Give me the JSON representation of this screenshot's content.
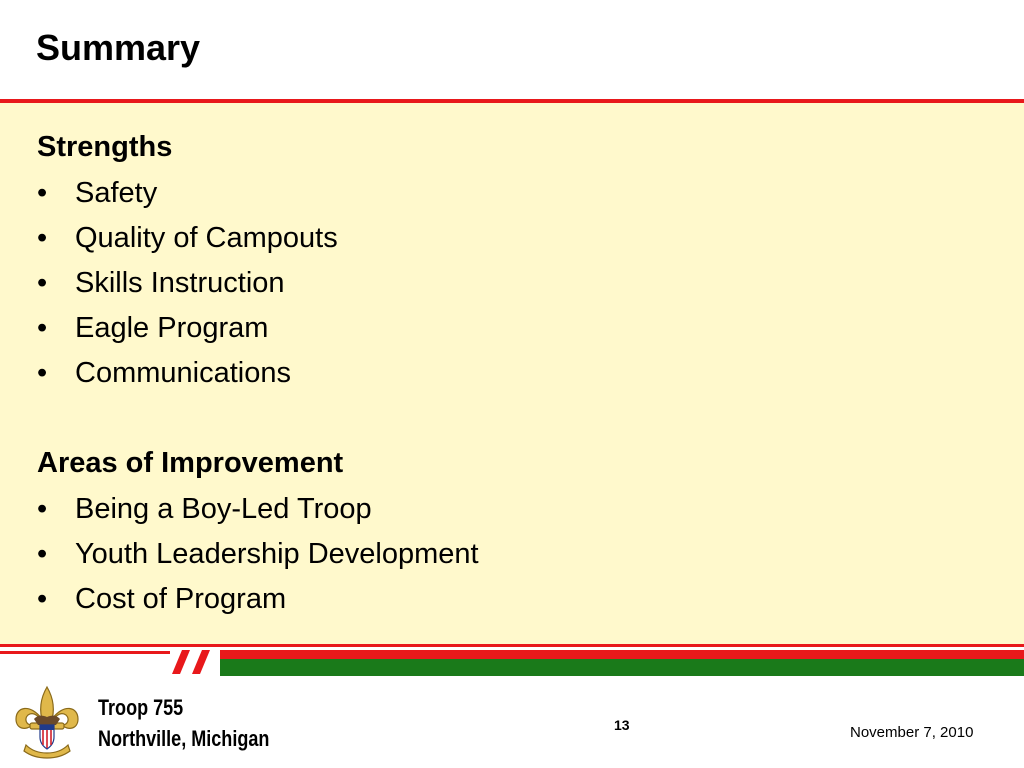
{
  "slide": {
    "title": "Summary",
    "strengths": {
      "heading": "Strengths",
      "items": [
        "Safety",
        "Quality of Campouts",
        "Skills Instruction",
        "Eagle Program",
        "Communications"
      ]
    },
    "improvements": {
      "heading": "Areas of Improvement",
      "items": [
        "Being a Boy-Led Troop",
        "Youth Leadership Development",
        "Cost of Program"
      ]
    },
    "bullet_glyph": "•"
  },
  "footer": {
    "troop_name": "Troop 755",
    "location": "Northville, Michigan",
    "page_number": "13",
    "date": "November 7, 2010",
    "emblem_icon": "fleur-de-lis-emblem"
  },
  "colors": {
    "accent_red": "#e8181b",
    "accent_green": "#1a7a1a",
    "content_background": "#fff9cc"
  }
}
